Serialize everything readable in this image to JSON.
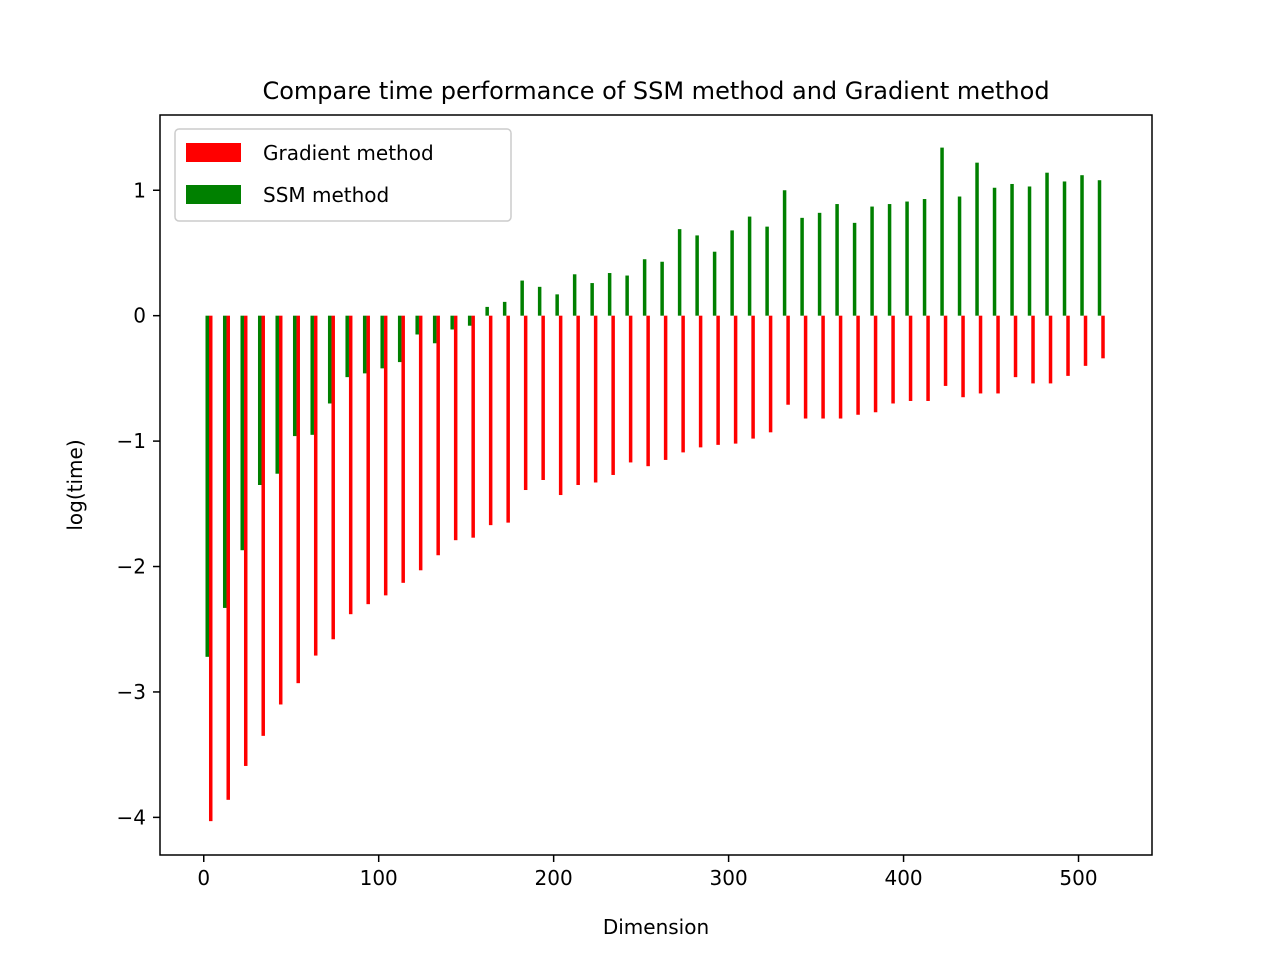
{
  "chart_data": {
    "type": "bar",
    "title": "Compare time performance of SSM method and Gradient method",
    "xlabel": "Dimension",
    "ylabel": "log(time)",
    "xlim": [
      -25,
      542
    ],
    "ylim": [
      -4.3,
      1.6
    ],
    "xticks": [
      0,
      100,
      200,
      300,
      400,
      500
    ],
    "xtick_labels": [
      "0",
      "100",
      "200",
      "300",
      "400",
      "500"
    ],
    "yticks": [
      -4,
      -3,
      -2,
      -1,
      0,
      1
    ],
    "ytick_labels": [
      "−4",
      "−3",
      "−2",
      "−1",
      "0",
      "1"
    ],
    "legend_position": "upper-left",
    "grid": false,
    "bar_width": 2,
    "x": [
      2,
      12,
      22,
      32,
      42,
      52,
      62,
      72,
      82,
      92,
      102,
      112,
      122,
      132,
      142,
      152,
      162,
      172,
      182,
      192,
      202,
      212,
      222,
      232,
      242,
      252,
      262,
      272,
      282,
      292,
      302,
      312,
      322,
      332,
      342,
      352,
      362,
      372,
      382,
      392,
      402,
      412,
      422,
      432,
      442,
      452,
      462,
      472,
      482,
      492,
      502,
      512
    ],
    "series": [
      {
        "name": "Gradient method",
        "color": "#ff0000",
        "offset": 2,
        "values": [
          -4.03,
          -3.86,
          -3.59,
          -3.35,
          -3.1,
          -2.93,
          -2.71,
          -2.58,
          -2.38,
          -2.3,
          -2.23,
          -2.13,
          -2.03,
          -1.91,
          -1.79,
          -1.77,
          -1.67,
          -1.65,
          -1.39,
          -1.31,
          -1.43,
          -1.35,
          -1.33,
          -1.27,
          -1.17,
          -1.2,
          -1.15,
          -1.09,
          -1.05,
          -1.03,
          -1.02,
          -0.98,
          -0.93,
          -0.71,
          -0.82,
          -0.82,
          -0.82,
          -0.79,
          -0.77,
          -0.7,
          -0.68,
          -0.68,
          -0.56,
          -0.65,
          -0.62,
          -0.62,
          -0.49,
          -0.54,
          -0.54,
          -0.48,
          -0.4,
          -0.34
        ]
      },
      {
        "name": "SSM method",
        "color": "#008000",
        "offset": 0,
        "values": [
          -2.72,
          -2.33,
          -1.87,
          -1.35,
          -1.26,
          -0.96,
          -0.95,
          -0.7,
          -0.49,
          -0.46,
          -0.42,
          -0.37,
          -0.15,
          -0.22,
          -0.11,
          -0.08,
          0.07,
          0.11,
          0.28,
          0.23,
          0.17,
          0.33,
          0.26,
          0.34,
          0.32,
          0.45,
          0.43,
          0.69,
          0.64,
          0.51,
          0.68,
          0.79,
          0.71,
          1.0,
          0.78,
          0.82,
          0.89,
          0.74,
          0.87,
          0.89,
          0.91,
          0.93,
          1.34,
          0.95,
          1.22,
          1.02,
          1.05,
          1.03,
          1.14,
          1.07,
          1.12,
          1.08
        ]
      }
    ]
  }
}
